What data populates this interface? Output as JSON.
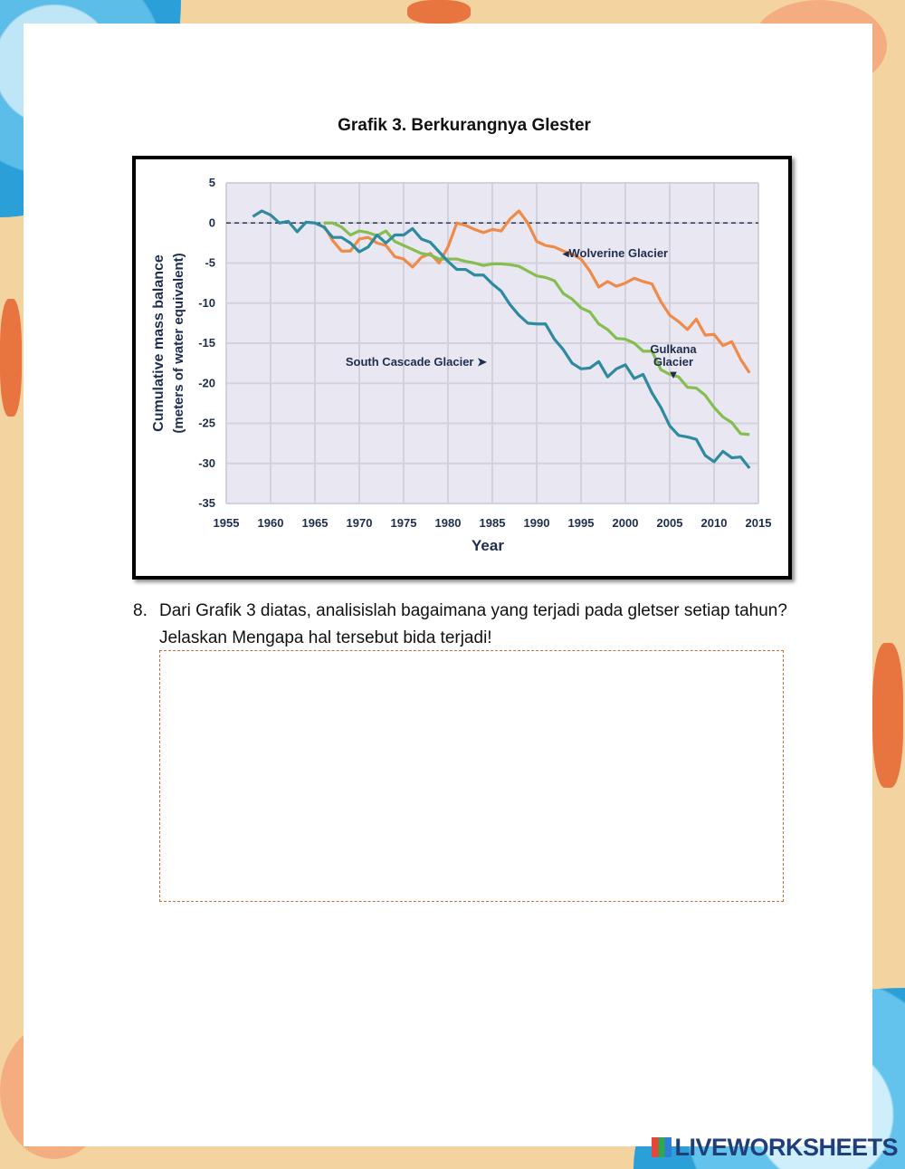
{
  "title": "Grafik 3. Berkurangnya Glester",
  "question": {
    "number": "8.",
    "text": "Dari Grafik 3 diatas, analisislah bagaimana yang terjadi pada gletser setiap tahun? Jelaskan Mengapa hal tersebut bida terjadi!"
  },
  "answer_box": {
    "value": ""
  },
  "logo": "LIVEWORKSHEETS",
  "chart_data": {
    "type": "line",
    "xlabel": "Year",
    "ylabel": "Cumulative mass balance",
    "ylabel2": "(meters of water equivalent)",
    "xlim": [
      1955,
      2015
    ],
    "ylim": [
      -35,
      5
    ],
    "xticks": [
      "1955",
      "1960",
      "1965",
      "1970",
      "1975",
      "1980",
      "1985",
      "1990",
      "1995",
      "2000",
      "2005",
      "2010",
      "2015"
    ],
    "yticks": [
      "5",
      "0",
      "-5",
      "-10",
      "-15",
      "-20",
      "-25",
      "-30",
      "-35"
    ],
    "grid": true,
    "reference_line": 0,
    "series": [
      {
        "name": "South Cascade Glacier",
        "label": "South Cascade Glacier ➤",
        "color": "#2e8a9e",
        "x0": 1958,
        "values": [
          0.8,
          1.5,
          1.0,
          0,
          0.2,
          -1.1,
          0.1,
          0,
          -0.5,
          -1.8,
          -1.8,
          -2.5,
          -3.6,
          -3,
          -1.5,
          -2.5,
          -1.5,
          -1.5,
          -0.7,
          -2,
          -2.4,
          -3.6,
          -4.8,
          -5.8,
          -5.8,
          -6.5,
          -6.5,
          -7.6,
          -8.5,
          -10.2,
          -11.5,
          -12.5,
          -12.6,
          -12.6,
          -14.5,
          -15.8,
          -17.5,
          -18.2,
          -18.1,
          -17.3,
          -19.2,
          -18.2,
          -17.7,
          -19.4,
          -18.9,
          -21.2,
          -23,
          -25.3,
          -26.5,
          -26.7,
          -27,
          -29,
          -29.8,
          -28.5,
          -29.3,
          -29.2,
          -30.6
        ]
      },
      {
        "name": "Wolverine Glacier",
        "label": "◂Wolverine Glacier",
        "color": "#f08a48",
        "x0": 1966,
        "values": [
          -0.3,
          -2.2,
          -3.5,
          -3.5,
          -2,
          -1.8,
          -2.5,
          -2.8,
          -4.2,
          -4.5,
          -5.5,
          -4.3,
          -3.8,
          -5,
          -3,
          0,
          -0.3,
          -0.8,
          -1.2,
          -0.8,
          -1,
          0.5,
          1.5,
          0,
          -2.3,
          -2.8,
          -3,
          -3.5,
          -3.9,
          -4.5,
          -6,
          -8,
          -7.3,
          -7.9,
          -7.5,
          -6.9,
          -7.3,
          -7.6,
          -9.8,
          -11.5,
          -12.3,
          -13.3,
          -12,
          -14,
          -13.9,
          -15.3,
          -14.8,
          -17,
          -18.7
        ]
      },
      {
        "name": "Gulkana Glacier",
        "label": "Gulkana|Glacier|▼",
        "color": "#86bd50",
        "x0": 1966,
        "values": [
          0,
          0,
          -0.5,
          -1.5,
          -1,
          -1.2,
          -1.6,
          -1,
          -2.3,
          -2.8,
          -3.3,
          -3.8,
          -4,
          -4.5,
          -4.5,
          -4.5,
          -4.8,
          -5,
          -5.3,
          -5.1,
          -5.1,
          -5.2,
          -5.4,
          -6,
          -6.6,
          -6.8,
          -7.2,
          -8.8,
          -9.5,
          -10.6,
          -11.1,
          -12.6,
          -13.3,
          -14.4,
          -14.5,
          -15,
          -16,
          -16,
          -18.3,
          -18.9,
          -19.2,
          -20.5,
          -20.6,
          -21.5,
          -23,
          -24.2,
          -24.9,
          -26.3,
          -26.4
        ]
      }
    ]
  }
}
